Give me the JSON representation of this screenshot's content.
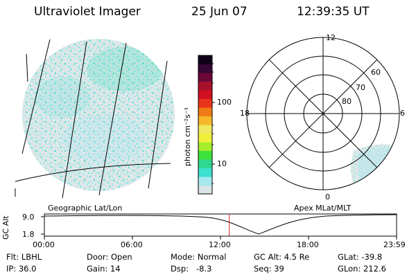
{
  "header": {
    "title": "Ultraviolet Imager",
    "date": "25 Jun 07",
    "time": "12:39:35 UT"
  },
  "colorbar": {
    "unit_label": "photon cm⁻²s⁻¹",
    "ticks": [
      "100",
      "10"
    ],
    "colors": [
      "#d8e4e6",
      "#a6e8ee",
      "#3ee0d0",
      "#2fd88e",
      "#3ee23c",
      "#a6ee2c",
      "#eef03a",
      "#f0e860",
      "#f6b82a",
      "#f07a16",
      "#e8341c",
      "#d01020",
      "#a8102c",
      "#6c0838",
      "#360634",
      "#100018"
    ]
  },
  "geo": {
    "label": "Geographic Lat/Lon"
  },
  "polar": {
    "label": "Apex MLat/MLT",
    "mlt_labels": {
      "top": "12",
      "left": "18",
      "right": "6",
      "bottom": "0"
    },
    "lat_labels": [
      "80",
      "70",
      "60"
    ]
  },
  "timeline": {
    "axis_title": "GC Alt",
    "y_ticks": [
      "9.0",
      "1.8"
    ],
    "x_ticks": [
      "00:00",
      "06:00",
      "12:00",
      "18:00",
      "23:59"
    ],
    "current_time_fraction": 0.525
  },
  "info": {
    "flt": "Flt: LBHL",
    "ip": "IP: 36.0",
    "door": "Door: Open",
    "gain": "Gain: 14",
    "mode": "Mode: Normal",
    "dsp": "Dsp:   -8.3",
    "gcalt": "GC Alt: 4.5 Re",
    "seq": "Seq: 39",
    "glat": "GLat: -39.8",
    "glon": "GLon: 212.6"
  }
}
